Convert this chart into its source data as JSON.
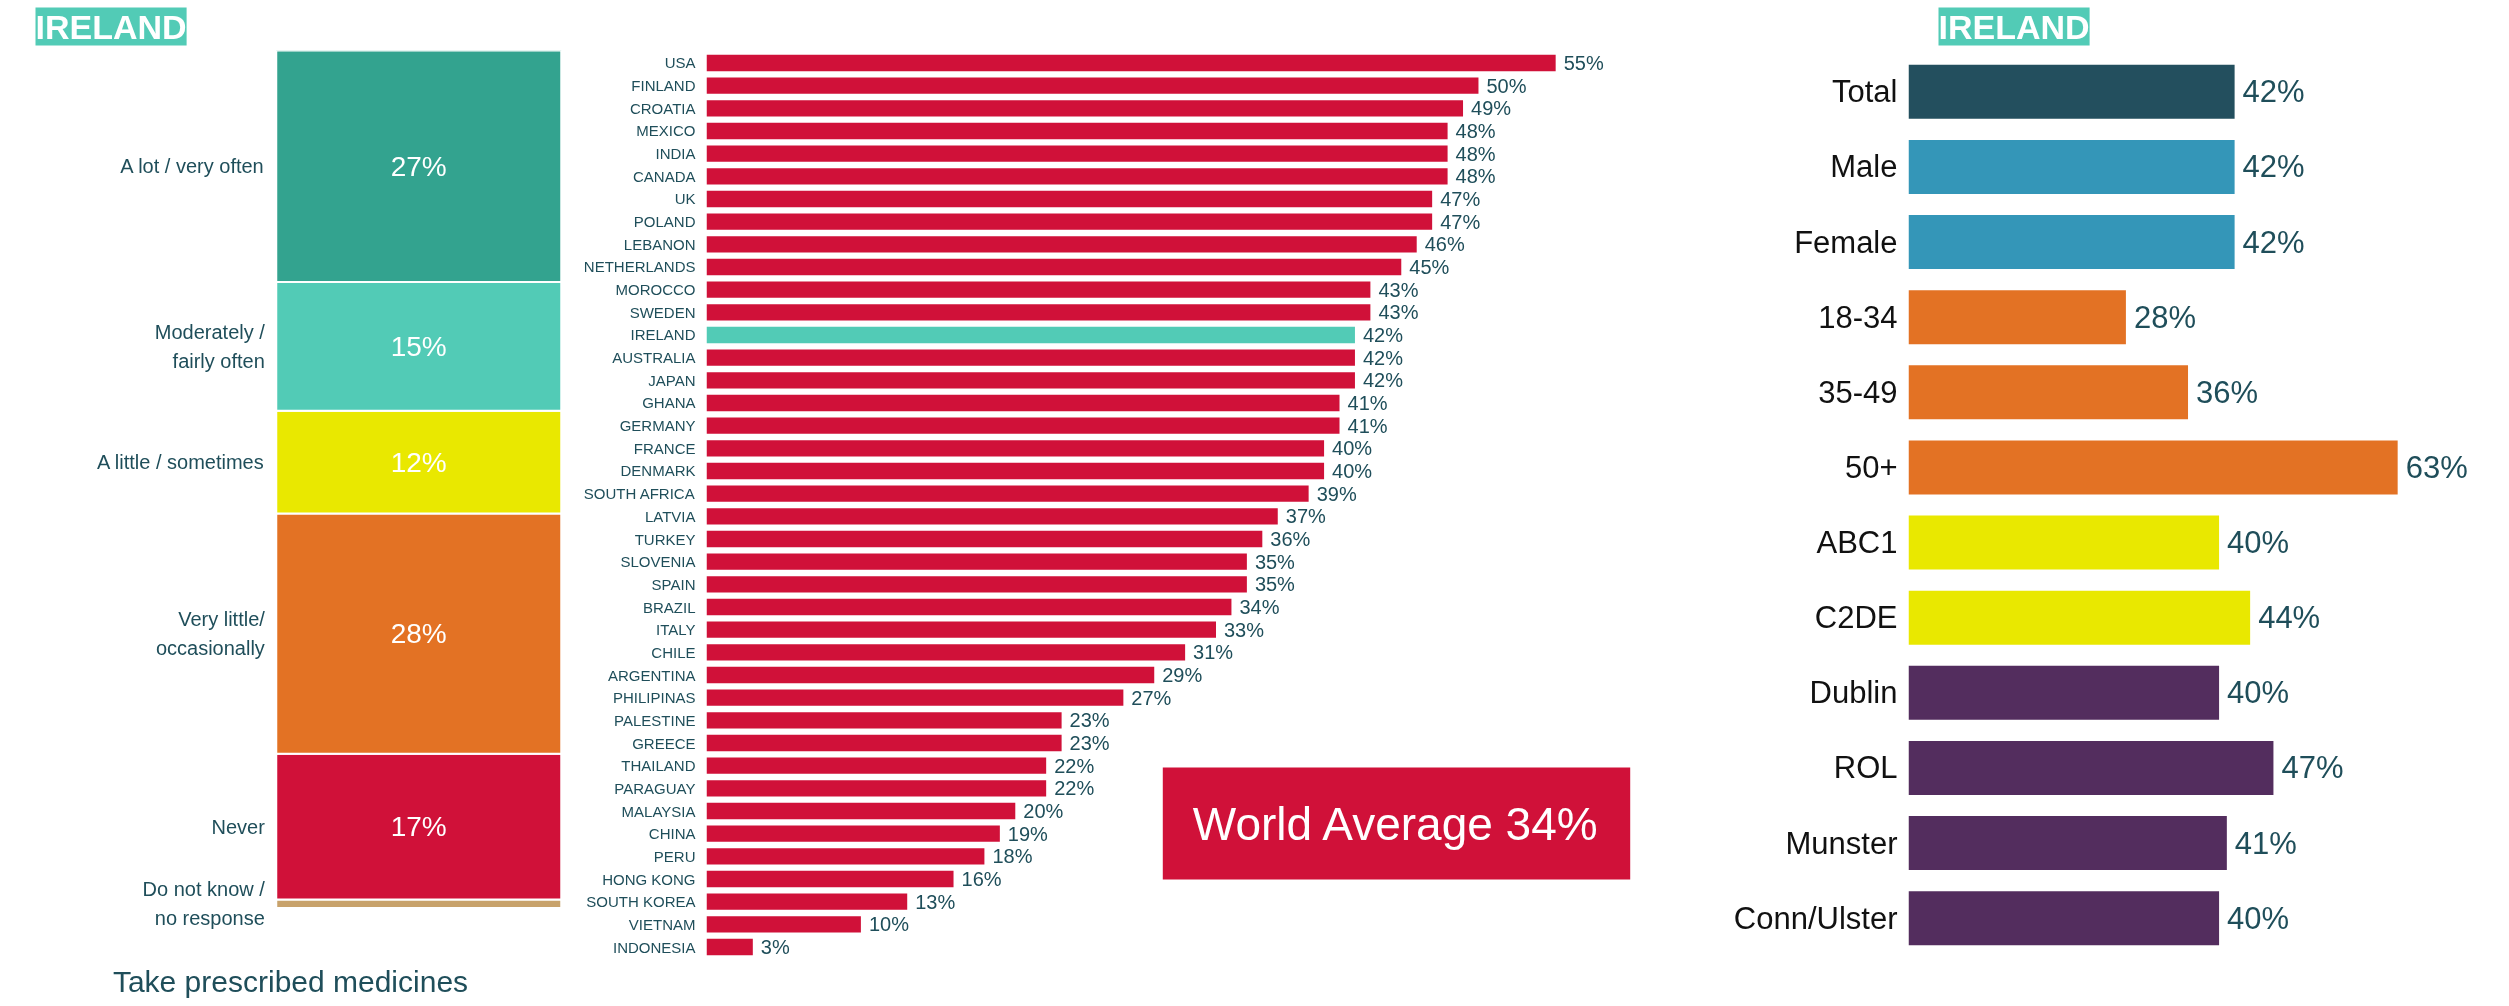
{
  "chart_data": [
    {
      "type": "bar",
      "title": "IRELAND",
      "xlabel": "Take prescribed medicines",
      "categories": [
        null
      ],
      "stacked": true,
      "series": [
        {
          "name": "Do not know / no response",
          "color": "#c8a26b",
          "values": [
            1
          ],
          "value_labels": [
            null
          ]
        },
        {
          "name": "Never",
          "color": "#d01139",
          "values": [
            17
          ],
          "value_labels": [
            "17%"
          ]
        },
        {
          "name": "Very little/ occasionally",
          "color": "#e37224",
          "values": [
            28
          ],
          "value_labels": [
            "28%"
          ]
        },
        {
          "name": "A little / sometimes",
          "color": "#e9e800",
          "values": [
            12
          ],
          "value_labels": [
            "12%"
          ]
        },
        {
          "name": "Moderately / fairly often",
          "color": "#52cbb6",
          "values": [
            15
          ],
          "value_labels": [
            "15%"
          ]
        },
        {
          "name": "A lot / very often",
          "color": "#33a38f",
          "values": [
            27
          ],
          "value_labels": [
            "27%"
          ]
        }
      ]
    },
    {
      "type": "bar",
      "orientation": "horizontal",
      "categories": [
        "USA",
        "FINLAND",
        "CROATIA",
        "MEXICO",
        "INDIA",
        "CANADA",
        "UK",
        "POLAND",
        "LEBANON",
        "NETHERLANDS",
        "MOROCCO",
        "SWEDEN",
        "IRELAND",
        "AUSTRALIA",
        "JAPAN",
        "GHANA",
        "GERMANY",
        "FRANCE",
        "DENMARK",
        "SOUTH AFRICA",
        "LATVIA",
        "TURKEY",
        "SLOVENIA",
        "SPAIN",
        "BRAZIL",
        "ITALY",
        "CHILE",
        "ARGENTINA",
        "PHILIPINAS",
        "PALESTINE",
        "GREECE",
        "THAILAND",
        "PARAGUAY",
        "MALAYSIA",
        "CHINA",
        "PERU",
        "HONG KONG",
        "SOUTH KOREA",
        "VIETNAM",
        "INDONESIA"
      ],
      "values": [
        55,
        50,
        49,
        48,
        48,
        48,
        47,
        47,
        46,
        45,
        43,
        43,
        42,
        42,
        42,
        41,
        41,
        40,
        40,
        39,
        37,
        36,
        35,
        35,
        34,
        33,
        31,
        29,
        27,
        23,
        23,
        22,
        22,
        20,
        19,
        18,
        16,
        13,
        10,
        3
      ],
      "value_labels": [
        "55%",
        "50%",
        "49%",
        "48%",
        "48%",
        "48%",
        "47%",
        "47%",
        "46%",
        "45%",
        "43%",
        "43%",
        "42%",
        "42%",
        "42%",
        "41%",
        "41%",
        "40%",
        "40%",
        "39%",
        "37%",
        "36%",
        "35%",
        "35%",
        "34%",
        "33%",
        "31%",
        "29%",
        "27%",
        "23%",
        "23%",
        "22%",
        "22%",
        "20%",
        "19%",
        "18%",
        "16%",
        "13%",
        "10%",
        "3%"
      ],
      "colors": [
        "#d01139",
        "#d01139",
        "#d01139",
        "#d01139",
        "#d01139",
        "#d01139",
        "#d01139",
        "#d01139",
        "#d01139",
        "#d01139",
        "#d01139",
        "#d01139",
        "#52cbb6",
        "#d01139",
        "#d01139",
        "#d01139",
        "#d01139",
        "#d01139",
        "#d01139",
        "#d01139",
        "#d01139",
        "#d01139",
        "#d01139",
        "#d01139",
        "#d01139",
        "#d01139",
        "#d01139",
        "#d01139",
        "#d01139",
        "#d01139",
        "#d01139",
        "#d01139",
        "#d01139",
        "#d01139",
        "#d01139",
        "#d01139",
        "#d01139",
        "#d01139",
        "#d01139",
        "#d01139"
      ],
      "annotations": [
        "World Average 34%"
      ]
    },
    {
      "type": "bar",
      "orientation": "horizontal",
      "title": "IRELAND",
      "categories": [
        "Total",
        "Male",
        "Female",
        "18-34",
        "35-49",
        "50+",
        "ABC1",
        "C2DE",
        "Dublin",
        "ROL",
        "Munster",
        "Conn/Ulster"
      ],
      "values": [
        42,
        42,
        42,
        28,
        36,
        63,
        40,
        44,
        40,
        47,
        41,
        40
      ],
      "value_labels": [
        "42%",
        "42%",
        "42%",
        "28%",
        "36%",
        "63%",
        "40%",
        "44%",
        "40%",
        "47%",
        "41%",
        "40%"
      ],
      "colors": [
        "#234f5e",
        "#3496b8",
        "#3496b8",
        "#e37224",
        "#e37224",
        "#e37224",
        "#e9e800",
        "#e9e800",
        "#532d5e",
        "#532d5e",
        "#532d5e",
        "#532d5e"
      ]
    }
  ]
}
